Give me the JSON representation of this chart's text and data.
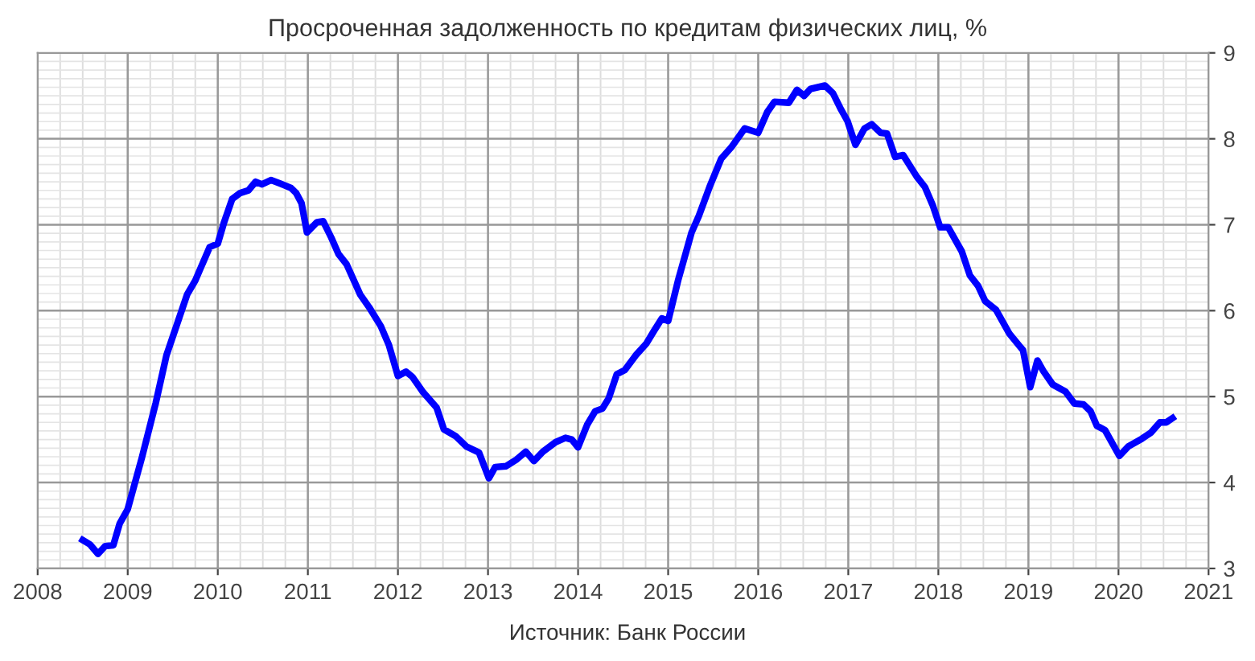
{
  "chart_data": {
    "type": "line",
    "title": "Просроченная задолженность по кредитам физических лиц, %",
    "annotations": [
      "Источник: Банк России"
    ],
    "x": [
      2008.5,
      2008.58,
      2008.67,
      2008.75,
      2008.84,
      2008.91,
      2009.0,
      2009.16,
      2009.31,
      2009.43,
      2009.54,
      2009.66,
      2009.75,
      2009.91,
      2010.0,
      2010.07,
      2010.16,
      2010.25,
      2010.34,
      2010.42,
      2010.49,
      2010.59,
      2010.69,
      2010.81,
      2010.87,
      2010.93,
      2010.99,
      2011.1,
      2011.17,
      2011.26,
      2011.34,
      2011.43,
      2011.58,
      2011.68,
      2011.81,
      2011.9,
      2012.0,
      2012.09,
      2012.16,
      2012.28,
      2012.43,
      2012.51,
      2012.64,
      2012.76,
      2012.9,
      2013.01,
      2013.08,
      2013.2,
      2013.32,
      2013.42,
      2013.51,
      2013.61,
      2013.75,
      2013.86,
      2013.93,
      2014.0,
      2014.1,
      2014.19,
      2014.27,
      2014.34,
      2014.43,
      2014.52,
      2014.64,
      2014.76,
      2014.84,
      2014.93,
      2015.0,
      2015.11,
      2015.26,
      2015.34,
      2015.46,
      2015.59,
      2015.7,
      2015.85,
      2016.0,
      2016.1,
      2016.18,
      2016.34,
      2016.43,
      2016.51,
      2016.58,
      2016.74,
      2016.83,
      2016.92,
      2016.99,
      2017.08,
      2017.18,
      2017.26,
      2017.36,
      2017.43,
      2017.52,
      2017.61,
      2017.76,
      2017.85,
      2017.94,
      2018.02,
      2018.11,
      2018.26,
      2018.35,
      2018.44,
      2018.52,
      2018.64,
      2018.79,
      2018.94,
      2019.02,
      2019.1,
      2019.17,
      2019.27,
      2019.41,
      2019.51,
      2019.61,
      2019.69,
      2019.76,
      2019.85,
      2020.01,
      2020.11,
      2020.26,
      2020.36,
      2020.46,
      2020.53,
      2020.6
    ],
    "series": [
      {
        "color": "#0000ff",
        "values": [
          3.33,
          3.28,
          3.17,
          3.26,
          3.27,
          3.52,
          3.69,
          4.3,
          4.92,
          5.48,
          5.82,
          6.19,
          6.35,
          6.74,
          6.78,
          7.03,
          7.3,
          7.37,
          7.4,
          7.5,
          7.47,
          7.52,
          7.48,
          7.43,
          7.37,
          7.25,
          6.91,
          7.03,
          7.04,
          6.85,
          6.66,
          6.54,
          6.19,
          6.04,
          5.82,
          5.6,
          5.24,
          5.29,
          5.23,
          5.05,
          4.87,
          4.62,
          4.54,
          4.42,
          4.35,
          4.05,
          4.18,
          4.19,
          4.27,
          4.36,
          4.25,
          4.36,
          4.47,
          4.52,
          4.5,
          4.41,
          4.67,
          4.83,
          4.86,
          4.98,
          5.26,
          5.31,
          5.48,
          5.62,
          5.76,
          5.91,
          5.88,
          6.35,
          6.91,
          7.1,
          7.44,
          7.77,
          7.9,
          8.12,
          8.07,
          8.31,
          8.43,
          8.42,
          8.57,
          8.5,
          8.58,
          8.62,
          8.53,
          8.34,
          8.21,
          7.93,
          8.12,
          8.17,
          8.07,
          8.06,
          7.79,
          7.81,
          7.56,
          7.44,
          7.22,
          6.97,
          6.97,
          6.69,
          6.41,
          6.29,
          6.11,
          6.01,
          5.73,
          5.54,
          5.11,
          5.42,
          5.29,
          5.14,
          5.06,
          4.92,
          4.91,
          4.83,
          4.66,
          4.61,
          4.31,
          4.42,
          4.51,
          4.58,
          4.7,
          4.7,
          4.75
        ]
      }
    ],
    "xlim": [
      2008,
      2021
    ],
    "xticks": [
      2008,
      2009,
      2010,
      2011,
      2012,
      2013,
      2014,
      2015,
      2016,
      2017,
      2018,
      2019,
      2020,
      2021
    ],
    "ylim": [
      3,
      9
    ],
    "yticks": [
      3,
      4,
      5,
      6,
      7,
      8,
      9
    ],
    "grid": true,
    "marker": "none",
    "line_style": "solid"
  }
}
